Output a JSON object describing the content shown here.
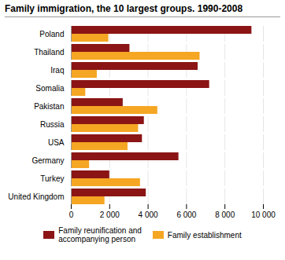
{
  "chart_data": {
    "type": "bar",
    "orientation": "horizontal",
    "title": "Family immigration, the 10 largest groups. 1990-2008",
    "categories": [
      "Poland",
      "Thailand",
      "Iraq",
      "Somalia",
      "Pakistan",
      "Russia",
      "USA",
      "Germany",
      "Turkey",
      "United Kingdom"
    ],
    "series": [
      {
        "name": "Family reunification and\naccompanying person",
        "color": "#8B1515",
        "values": [
          9400,
          3050,
          6600,
          7200,
          2700,
          3800,
          3700,
          5600,
          2000,
          3900
        ]
      },
      {
        "name": "Family establishment",
        "color": "#F5A623",
        "values": [
          1950,
          6700,
          1350,
          750,
          4500,
          3500,
          2950,
          950,
          3600,
          1750
        ]
      }
    ],
    "xlim": [
      0,
      10000
    ],
    "xticks": [
      0,
      {
        "value": 2000,
        "label": "2 000"
      },
      {
        "value": 4000,
        "label": "4 000"
      },
      {
        "value": 6000,
        "label": "6 000"
      },
      {
        "value": 8000,
        "label": "8 000"
      },
      {
        "value": 10000,
        "label": "10 000"
      }
    ],
    "grid": true,
    "legend": "bottom"
  }
}
